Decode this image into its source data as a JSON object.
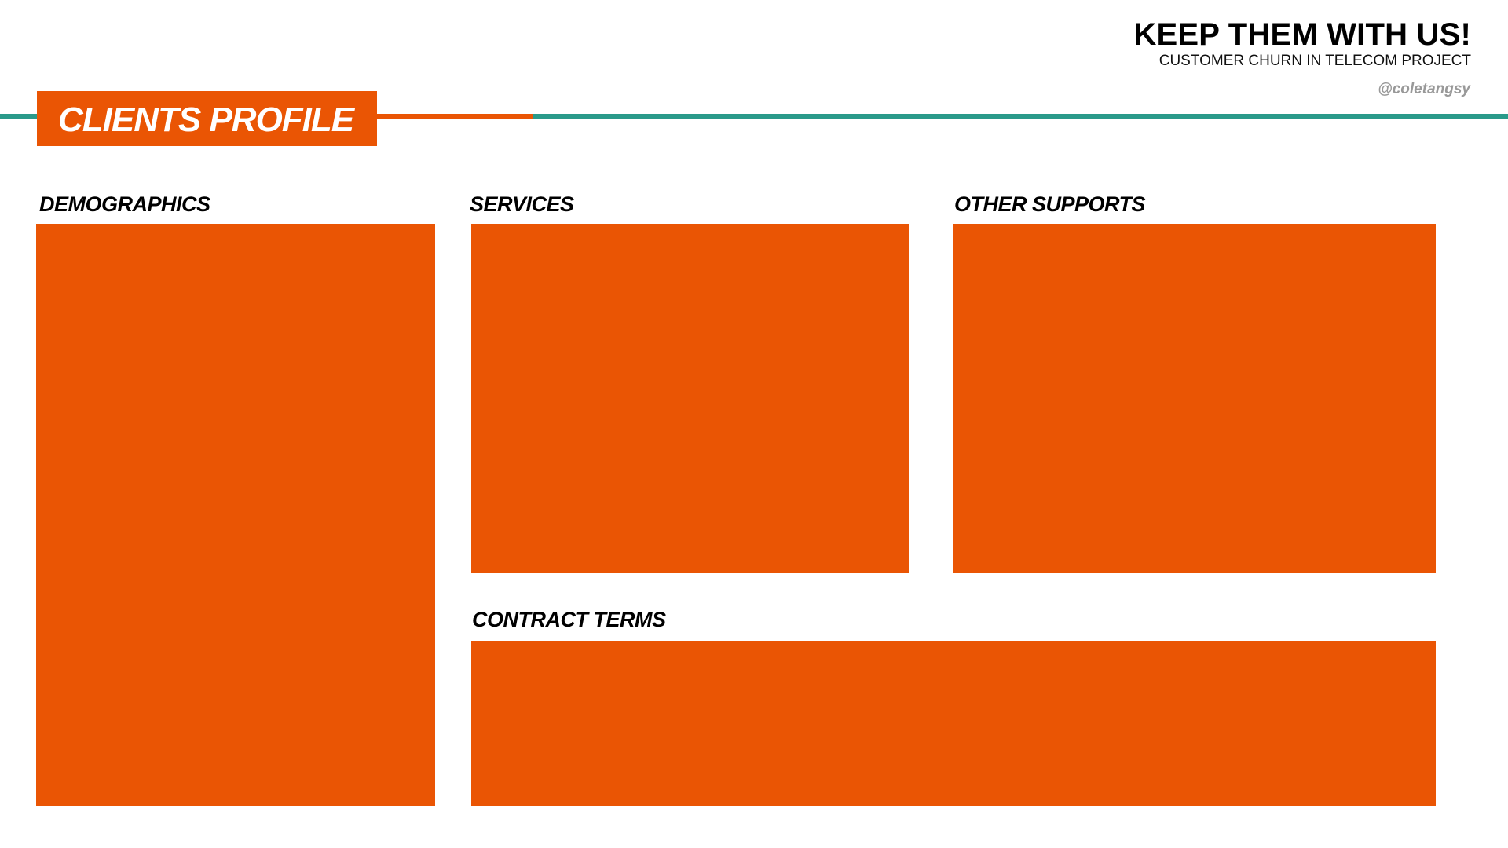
{
  "header": {
    "title": "KEEP THEM WITH US!",
    "subtitle": "CUSTOMER CHURN IN TELECOM PROJECT",
    "handle": "@coletangsy"
  },
  "banner": {
    "title": "CLIENTS PROFILE"
  },
  "sections": {
    "demographics": "DEMOGRAPHICS",
    "services": "SERVICES",
    "other_supports": "OTHER SUPPORTS",
    "contract_terms": "CONTRACT TERMS"
  },
  "colors": {
    "accent_orange": "#ea5504",
    "accent_teal": "#2a9a8a",
    "handle_gray": "#999999"
  }
}
